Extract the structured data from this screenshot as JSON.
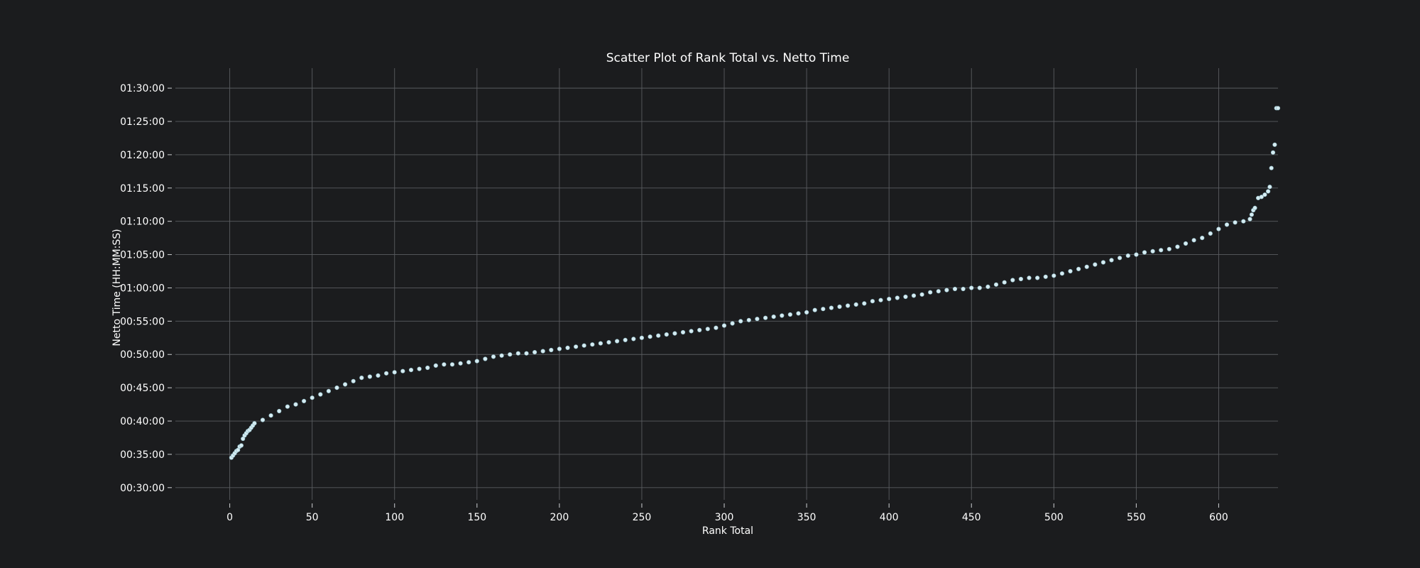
{
  "chart_data": {
    "type": "scatter",
    "title": "Scatter Plot of Rank Total vs. Netto Time",
    "xlabel": "Rank Total",
    "ylabel": "Netto Time (HH:MM:SS)",
    "xlim": [
      -33,
      636
    ],
    "ylim": [
      "00:28:10",
      "01:33:00"
    ],
    "x_ticks": [
      0,
      50,
      100,
      150,
      200,
      250,
      300,
      350,
      400,
      450,
      500,
      550,
      600
    ],
    "y_ticks": [
      "00:30:00",
      "00:35:00",
      "00:40:00",
      "00:45:00",
      "00:50:00",
      "00:55:00",
      "01:00:00",
      "01:05:00",
      "01:10:00",
      "01:15:00",
      "01:20:00",
      "01:25:00",
      "01:30:00"
    ],
    "grid": true,
    "marker_color": "#d5ecf2",
    "background_color": "#1b1c1e",
    "series": [
      {
        "points": [
          [
            1,
            "00:34:30"
          ],
          [
            2,
            "00:34:50"
          ],
          [
            3,
            "00:35:10"
          ],
          [
            4,
            "00:35:30"
          ],
          [
            5,
            "00:35:40"
          ],
          [
            6,
            "00:36:10"
          ],
          [
            7,
            "00:36:20"
          ],
          [
            8,
            "00:37:20"
          ],
          [
            9,
            "00:37:50"
          ],
          [
            10,
            "00:38:10"
          ],
          [
            11,
            "00:38:30"
          ],
          [
            12,
            "00:38:40"
          ],
          [
            13,
            "00:39:00"
          ],
          [
            14,
            "00:39:20"
          ],
          [
            15,
            "00:39:40"
          ],
          [
            20,
            "00:40:10"
          ],
          [
            25,
            "00:40:50"
          ],
          [
            30,
            "00:41:30"
          ],
          [
            35,
            "00:42:10"
          ],
          [
            40,
            "00:42:30"
          ],
          [
            45,
            "00:43:00"
          ],
          [
            50,
            "00:43:30"
          ],
          [
            55,
            "00:44:00"
          ],
          [
            60,
            "00:44:30"
          ],
          [
            65,
            "00:45:00"
          ],
          [
            70,
            "00:45:30"
          ],
          [
            75,
            "00:46:00"
          ],
          [
            80,
            "00:46:30"
          ],
          [
            85,
            "00:46:40"
          ],
          [
            90,
            "00:46:50"
          ],
          [
            95,
            "00:47:10"
          ],
          [
            100,
            "00:47:20"
          ],
          [
            105,
            "00:47:30"
          ],
          [
            110,
            "00:47:40"
          ],
          [
            115,
            "00:47:50"
          ],
          [
            120,
            "00:48:00"
          ],
          [
            125,
            "00:48:20"
          ],
          [
            130,
            "00:48:30"
          ],
          [
            135,
            "00:48:30"
          ],
          [
            140,
            "00:48:40"
          ],
          [
            145,
            "00:48:50"
          ],
          [
            150,
            "00:49:00"
          ],
          [
            155,
            "00:49:20"
          ],
          [
            160,
            "00:49:40"
          ],
          [
            165,
            "00:49:50"
          ],
          [
            170,
            "00:50:00"
          ],
          [
            175,
            "00:50:10"
          ],
          [
            180,
            "00:50:10"
          ],
          [
            185,
            "00:50:20"
          ],
          [
            190,
            "00:50:30"
          ],
          [
            195,
            "00:50:40"
          ],
          [
            200,
            "00:50:50"
          ],
          [
            205,
            "00:51:00"
          ],
          [
            210,
            "00:51:10"
          ],
          [
            215,
            "00:51:20"
          ],
          [
            220,
            "00:51:30"
          ],
          [
            225,
            "00:51:40"
          ],
          [
            230,
            "00:51:50"
          ],
          [
            235,
            "00:52:00"
          ],
          [
            240,
            "00:52:10"
          ],
          [
            245,
            "00:52:20"
          ],
          [
            250,
            "00:52:30"
          ],
          [
            255,
            "00:52:40"
          ],
          [
            260,
            "00:52:50"
          ],
          [
            265,
            "00:53:00"
          ],
          [
            270,
            "00:53:10"
          ],
          [
            275,
            "00:53:20"
          ],
          [
            280,
            "00:53:30"
          ],
          [
            285,
            "00:53:40"
          ],
          [
            290,
            "00:53:50"
          ],
          [
            295,
            "00:54:00"
          ],
          [
            300,
            "00:54:20"
          ],
          [
            305,
            "00:54:40"
          ],
          [
            310,
            "00:55:00"
          ],
          [
            315,
            "00:55:10"
          ],
          [
            320,
            "00:55:20"
          ],
          [
            325,
            "00:55:30"
          ],
          [
            330,
            "00:55:40"
          ],
          [
            335,
            "00:55:50"
          ],
          [
            340,
            "00:56:00"
          ],
          [
            345,
            "00:56:10"
          ],
          [
            350,
            "00:56:20"
          ],
          [
            355,
            "00:56:40"
          ],
          [
            360,
            "00:56:50"
          ],
          [
            365,
            "00:57:00"
          ],
          [
            370,
            "00:57:10"
          ],
          [
            375,
            "00:57:20"
          ],
          [
            380,
            "00:57:30"
          ],
          [
            385,
            "00:57:40"
          ],
          [
            390,
            "00:58:00"
          ],
          [
            395,
            "00:58:10"
          ],
          [
            400,
            "00:58:20"
          ],
          [
            405,
            "00:58:30"
          ],
          [
            410,
            "00:58:40"
          ],
          [
            415,
            "00:58:50"
          ],
          [
            420,
            "00:59:00"
          ],
          [
            425,
            "00:59:20"
          ],
          [
            430,
            "00:59:30"
          ],
          [
            435,
            "00:59:40"
          ],
          [
            440,
            "00:59:50"
          ],
          [
            445,
            "00:59:50"
          ],
          [
            450,
            "01:00:00"
          ],
          [
            455,
            "01:00:00"
          ],
          [
            460,
            "01:00:10"
          ],
          [
            465,
            "01:00:30"
          ],
          [
            470,
            "01:00:50"
          ],
          [
            475,
            "01:01:10"
          ],
          [
            480,
            "01:01:20"
          ],
          [
            485,
            "01:01:30"
          ],
          [
            490,
            "01:01:30"
          ],
          [
            495,
            "01:01:40"
          ],
          [
            500,
            "01:01:50"
          ],
          [
            505,
            "01:02:10"
          ],
          [
            510,
            "01:02:30"
          ],
          [
            515,
            "01:02:50"
          ],
          [
            520,
            "01:03:10"
          ],
          [
            525,
            "01:03:30"
          ],
          [
            530,
            "01:03:50"
          ],
          [
            535,
            "01:04:10"
          ],
          [
            540,
            "01:04:30"
          ],
          [
            545,
            "01:04:50"
          ],
          [
            550,
            "01:05:00"
          ],
          [
            555,
            "01:05:20"
          ],
          [
            560,
            "01:05:30"
          ],
          [
            565,
            "01:05:40"
          ],
          [
            570,
            "01:05:50"
          ],
          [
            575,
            "01:06:10"
          ],
          [
            580,
            "01:06:40"
          ],
          [
            585,
            "01:07:10"
          ],
          [
            590,
            "01:07:30"
          ],
          [
            595,
            "01:08:10"
          ],
          [
            600,
            "01:08:50"
          ],
          [
            605,
            "01:09:30"
          ],
          [
            610,
            "01:09:50"
          ],
          [
            615,
            "01:10:00"
          ],
          [
            619,
            "01:10:20"
          ],
          [
            620,
            "01:11:00"
          ],
          [
            621,
            "01:11:40"
          ],
          [
            622,
            "01:12:00"
          ],
          [
            624,
            "01:13:30"
          ],
          [
            626,
            "01:13:40"
          ],
          [
            628,
            "01:14:00"
          ],
          [
            630,
            "01:14:30"
          ],
          [
            631,
            "01:15:10"
          ],
          [
            632,
            "01:18:00"
          ],
          [
            633,
            "01:20:20"
          ],
          [
            634,
            "01:21:30"
          ],
          [
            635,
            "01:27:00"
          ],
          [
            636,
            "01:27:00"
          ]
        ]
      }
    ]
  }
}
